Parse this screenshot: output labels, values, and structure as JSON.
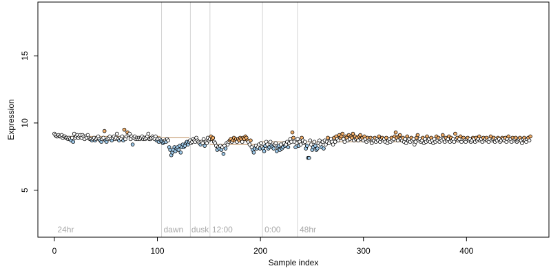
{
  "chart_data": {
    "type": "scatter",
    "title": "",
    "xlabel": "Sample index",
    "ylabel": "Expression",
    "xlim": [
      -16,
      480
    ],
    "ylim": [
      1.5,
      19.0
    ],
    "x_ticks": [
      0,
      100,
      200,
      300,
      400
    ],
    "y_ticks": [
      5,
      10,
      15
    ],
    "grid": false,
    "vlines": [
      104,
      132,
      151,
      202,
      236
    ],
    "annotations": [
      {
        "x": 3,
        "label": "24hr"
      },
      {
        "x": 106,
        "label": "dawn"
      },
      {
        "x": 133,
        "label": "dusk"
      },
      {
        "x": 153,
        "label": "12:00"
      },
      {
        "x": 204,
        "label": "0:00"
      },
      {
        "x": 238,
        "label": "48hr"
      }
    ],
    "segments": [
      {
        "x_start": 0,
        "x_end": 103,
        "level": 9.0
      },
      {
        "x_start": 104,
        "x_end": 131,
        "level": 8.9
      },
      {
        "x_start": 132,
        "x_end": 150,
        "level": 8.7
      },
      {
        "x_start": 151,
        "x_end": 201,
        "level": 8.4
      },
      {
        "x_start": 202,
        "x_end": 235,
        "level": 8.6
      },
      {
        "x_start": 236,
        "x_end": 462,
        "level": 8.6
      }
    ],
    "series": [
      {
        "color_low": "#9ec9e9",
        "color_high": "#f4b06b",
        "x_range": [
          0,
          462
        ],
        "y": [
          9.2,
          9.1,
          9.0,
          9.0,
          9.1,
          9.0,
          9.0,
          9.1,
          8.9,
          9.0,
          9.0,
          8.9,
          8.9,
          8.8,
          8.9,
          8.8,
          8.7,
          8.9,
          8.6,
          9.2,
          8.9,
          9.0,
          9.1,
          8.9,
          9.0,
          9.1,
          8.9,
          9.1,
          9.0,
          8.8,
          9.0,
          8.9,
          9.1,
          8.9,
          8.8,
          8.8,
          8.7,
          8.8,
          8.9,
          8.7,
          8.8,
          8.9,
          9.0,
          8.8,
          8.7,
          8.6,
          8.8,
          8.9,
          9.4,
          8.7,
          8.6,
          8.8,
          8.9,
          9.0,
          8.8,
          8.7,
          8.9,
          9.0,
          8.8,
          8.9,
          9.2,
          8.8,
          8.7,
          8.9,
          8.8,
          9.0,
          8.7,
          9.5,
          8.8,
          9.0,
          9.3,
          9.1,
          9.2,
          8.8,
          9.0,
          8.4,
          8.9,
          9.0,
          8.8,
          8.9,
          8.8,
          8.9,
          8.8,
          8.9,
          9.0,
          8.8,
          8.9,
          8.8,
          8.9,
          9.0,
          9.2,
          8.8,
          8.8,
          8.9,
          9.0,
          8.9,
          8.8,
          9.0,
          8.7,
          8.8,
          8.6,
          8.8,
          8.7,
          8.6,
          8.5,
          8.6,
          8.7,
          8.6,
          8.8,
          8.7,
          8.2,
          8.0,
          7.6,
          7.8,
          8.0,
          8.2,
          7.9,
          8.1,
          8.2,
          8.0,
          8.3,
          7.8,
          8.2,
          8.4,
          8.2,
          8.3,
          8.5,
          8.6,
          8.4,
          8.6,
          8.7,
          8.5,
          8.6,
          8.8,
          8.7,
          8.6,
          8.9,
          8.7,
          8.6,
          8.5,
          8.4,
          8.6,
          8.5,
          8.8,
          8.3,
          8.6,
          8.5,
          8.9,
          8.7,
          8.8,
          9.0,
          8.8,
          8.9,
          8.6,
          8.5,
          8.3,
          8.0,
          8.2,
          8.1,
          8.3,
          8.0,
          8.2,
          7.7,
          8.3,
          8.1,
          8.5,
          8.4,
          8.6,
          8.7,
          8.8,
          8.6,
          8.7,
          8.9,
          8.7,
          8.8,
          8.6,
          8.8,
          8.7,
          8.9,
          8.8,
          8.6,
          8.9,
          8.8,
          9.0,
          8.9,
          8.7,
          8.6,
          8.4,
          8.7,
          8.2,
          8.0,
          7.8,
          8.1,
          8.3,
          8.1,
          8.2,
          8.4,
          8.1,
          8.5,
          8.2,
          8.1,
          7.9,
          8.3,
          8.6,
          8.4,
          8.1,
          8.2,
          8.6,
          8.3,
          8.2,
          8.1,
          8.4,
          8.5,
          7.9,
          8.2,
          8.3,
          8.0,
          8.4,
          8.1,
          8.2,
          8.5,
          8.3,
          8.4,
          8.6,
          8.2,
          8.5,
          8.8,
          8.6,
          9.3,
          8.9,
          8.6,
          8.2,
          8.5,
          8.8,
          8.3,
          8.6,
          8.4,
          8.9,
          8.7,
          8.5,
          8.6,
          8.1,
          8.3,
          7.4,
          7.4,
          8.7,
          8.4,
          8.0,
          8.2,
          8.6,
          8.3,
          8.0,
          8.1,
          8.5,
          8.7,
          8.4,
          8.2,
          8.6,
          8.1,
          8.7,
          8.4,
          8.6,
          8.9,
          8.5,
          8.7,
          8.8,
          8.6,
          8.4,
          8.9,
          8.6,
          9.0,
          8.8,
          8.7,
          9.1,
          8.9,
          9.0,
          9.2,
          8.8,
          8.6,
          9.0,
          8.9,
          8.7,
          9.1,
          8.8,
          9.0,
          8.9,
          9.2,
          8.7,
          9.0,
          8.8,
          8.9,
          8.7,
          9.0,
          9.1,
          8.8,
          8.9,
          8.7,
          9.0,
          8.8,
          8.6,
          8.9,
          8.7,
          8.8,
          8.9,
          8.5,
          8.8,
          8.7,
          8.9,
          8.6,
          8.8,
          8.7,
          9.0,
          8.6,
          8.8,
          8.9,
          8.7,
          8.8,
          8.6,
          8.9,
          8.5,
          8.7,
          8.8,
          8.6,
          8.9,
          8.7,
          8.8,
          9.0,
          9.3,
          8.9,
          8.7,
          9.0,
          9.1,
          8.8,
          8.7,
          8.9,
          8.6,
          8.8,
          8.5,
          9.0,
          8.7,
          8.8,
          8.6,
          8.9,
          8.7,
          8.8,
          8.4,
          8.6,
          8.9,
          9.1,
          8.7,
          8.8,
          8.6,
          8.7,
          8.9,
          8.5,
          8.8,
          8.6,
          9.0,
          8.7,
          8.8,
          8.6,
          8.9,
          8.7,
          8.5,
          8.8,
          8.6,
          9.0,
          8.7,
          8.9,
          8.6,
          8.8,
          8.7,
          9.1,
          8.8,
          8.6,
          8.9,
          8.7,
          8.8,
          9.0,
          8.6,
          8.9,
          8.7,
          8.8,
          8.6,
          9.2,
          8.8,
          8.9,
          8.7,
          8.8,
          9.0,
          8.6,
          8.8,
          8.9,
          8.7,
          8.6,
          8.8,
          8.9,
          8.7,
          8.8,
          8.6,
          8.7,
          8.9,
          8.8,
          8.6,
          8.9,
          8.7,
          8.8,
          9.0,
          8.7,
          8.8,
          8.6,
          8.9,
          8.7,
          8.8,
          8.9,
          8.7,
          8.6,
          8.8,
          9.0,
          8.7,
          8.8,
          8.9,
          8.6,
          8.8,
          8.7,
          8.9,
          8.8,
          8.6,
          8.7,
          8.9,
          8.8,
          8.7,
          8.9,
          8.6,
          8.8,
          9.0,
          8.7,
          8.8,
          8.6,
          8.9,
          8.7,
          8.8,
          8.9,
          8.6,
          8.7,
          8.8,
          8.9,
          8.7,
          8.5,
          8.8,
          8.9,
          8.7,
          8.6,
          8.8,
          8.9,
          8.7,
          9.0
        ]
      }
    ],
    "colors": {
      "axis": "#000000",
      "vline": "#d3d3d3",
      "annotation": "#a9a9a9",
      "segment_low": "#9ec9e9",
      "segment_high": "#f4b06b"
    }
  }
}
